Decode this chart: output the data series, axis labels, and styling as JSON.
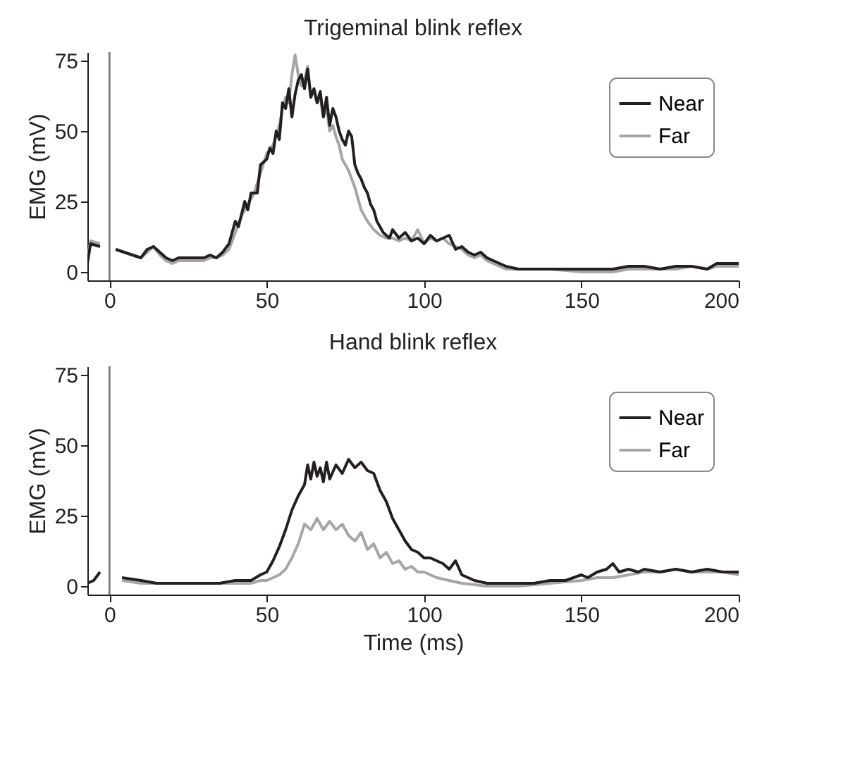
{
  "chart_data": [
    {
      "type": "line",
      "title": "Trigeminal blink reflex",
      "ylabel": "EMG (mV)",
      "xlim": [
        -7,
        200
      ],
      "ylim": [
        -3,
        78
      ],
      "xticks": [
        0,
        50,
        100,
        150,
        200
      ],
      "yticks": [
        0,
        25,
        50,
        75
      ],
      "grid": false,
      "legend": "top right",
      "ref_lines": [
        {
          "axis": "x",
          "value": 0,
          "color": "#808080"
        }
      ],
      "series": [
        {
          "name": "Far",
          "color": "#a6a6a6",
          "x": [
            -7,
            -6,
            -3,
            -1,
            2,
            10,
            12,
            14,
            16,
            18,
            20,
            22,
            25,
            28,
            30,
            32,
            34,
            36,
            38,
            40,
            42,
            44,
            46,
            48,
            50,
            52,
            54,
            55,
            56,
            57,
            58,
            59,
            60,
            61,
            62,
            63,
            64,
            65,
            66,
            67,
            68,
            69,
            70,
            71,
            72,
            73,
            74,
            76,
            78,
            80,
            82,
            84,
            86,
            88,
            90,
            92,
            94,
            96,
            98,
            100,
            102,
            104,
            106,
            108,
            110,
            112,
            114,
            116,
            118,
            120,
            122,
            124,
            126,
            130,
            140,
            150,
            160,
            165,
            170,
            175,
            180,
            185,
            190,
            193,
            196,
            200
          ],
          "values": [
            4,
            11,
            10,
            null,
            8,
            5,
            7,
            9,
            6,
            4,
            3,
            4,
            4,
            4,
            4,
            5,
            5,
            6,
            8,
            14,
            20,
            24,
            28,
            35,
            42,
            45,
            52,
            58,
            62,
            60,
            70,
            77,
            70,
            66,
            68,
            73,
            62,
            65,
            60,
            62,
            55,
            58,
            50,
            52,
            48,
            45,
            40,
            36,
            30,
            22,
            18,
            15,
            13,
            12,
            12,
            11,
            12,
            11,
            15,
            10,
            12,
            11,
            12,
            10,
            9,
            8,
            6,
            5,
            6,
            4,
            3,
            2,
            1,
            1,
            1,
            0,
            0,
            1,
            1,
            1,
            1,
            2,
            1,
            2,
            2,
            2
          ]
        },
        {
          "name": "Near",
          "color": "#231f20",
          "x": [
            -7,
            -6,
            -3,
            -1,
            2,
            10,
            12,
            14,
            16,
            18,
            20,
            22,
            25,
            28,
            30,
            32,
            34,
            36,
            38,
            40,
            41,
            43,
            44,
            45,
            47,
            48,
            50,
            51,
            52,
            53,
            54,
            55,
            56,
            57,
            58,
            59,
            60,
            61,
            62,
            63,
            64,
            65,
            66,
            67,
            68,
            69,
            70,
            71,
            72,
            73,
            74,
            75,
            76,
            77,
            78,
            79,
            80,
            81,
            82,
            83,
            84,
            85,
            87,
            89,
            90,
            92,
            94,
            96,
            98,
            100,
            102,
            104,
            106,
            108,
            110,
            112,
            114,
            116,
            118,
            120,
            122,
            124,
            126,
            130,
            140,
            150,
            160,
            165,
            170,
            175,
            180,
            185,
            190,
            193,
            196,
            200
          ],
          "values": [
            3,
            10,
            9,
            null,
            8,
            5,
            8,
            9,
            7,
            5,
            4,
            5,
            5,
            5,
            5,
            6,
            5,
            7,
            10,
            18,
            16,
            25,
            22,
            28,
            28,
            38,
            40,
            44,
            42,
            50,
            47,
            60,
            58,
            65,
            55,
            63,
            68,
            70,
            65,
            72,
            62,
            65,
            60,
            64,
            55,
            62,
            52,
            58,
            55,
            50,
            47,
            45,
            50,
            48,
            38,
            35,
            33,
            30,
            28,
            24,
            22,
            18,
            14,
            12,
            15,
            12,
            14,
            11,
            12,
            10,
            13,
            11,
            12,
            13,
            8,
            9,
            7,
            6,
            7,
            5,
            4,
            3,
            2,
            1,
            1,
            1,
            1,
            2,
            2,
            1,
            2,
            2,
            1,
            3,
            3,
            3
          ]
        }
      ]
    },
    {
      "type": "line",
      "title": "Hand blink reflex",
      "xlabel": "Time (ms)",
      "ylabel": "EMG (mV)",
      "xlim": [
        -7,
        200
      ],
      "ylim": [
        -3,
        78
      ],
      "xticks": [
        0,
        50,
        100,
        150,
        200
      ],
      "yticks": [
        0,
        25,
        50,
        75
      ],
      "grid": false,
      "legend": "top right",
      "ref_lines": [
        {
          "axis": "x",
          "value": 0,
          "color": "#808080"
        }
      ],
      "series": [
        {
          "name": "Far",
          "color": "#a6a6a6",
          "x": [
            4,
            10,
            15,
            20,
            25,
            30,
            35,
            40,
            45,
            48,
            50,
            52,
            54,
            56,
            58,
            60,
            62,
            64,
            66,
            68,
            70,
            72,
            74,
            76,
            78,
            80,
            82,
            84,
            86,
            88,
            90,
            92,
            94,
            96,
            98,
            100,
            102,
            104,
            108,
            112,
            120,
            130,
            140,
            150,
            155,
            160,
            165,
            170,
            175,
            180,
            185,
            190,
            195,
            200
          ],
          "values": [
            2,
            1,
            1,
            1,
            1,
            1,
            1,
            1,
            1,
            2,
            2,
            3,
            4,
            6,
            10,
            15,
            22,
            20,
            24,
            20,
            23,
            20,
            22,
            18,
            16,
            19,
            13,
            15,
            10,
            12,
            8,
            9,
            6,
            7,
            5,
            5,
            4,
            3,
            2,
            1,
            0,
            0,
            1,
            2,
            3,
            3,
            4,
            5,
            5,
            6,
            5,
            5,
            5,
            4
          ]
        },
        {
          "name": "Near",
          "color": "#231f20",
          "x": [
            -7,
            -5,
            -3,
            -1,
            4,
            10,
            15,
            20,
            25,
            30,
            35,
            40,
            45,
            48,
            50,
            52,
            54,
            56,
            58,
            60,
            62,
            63,
            64,
            65,
            66,
            67,
            68,
            69,
            70,
            72,
            74,
            76,
            78,
            80,
            82,
            84,
            86,
            88,
            90,
            92,
            94,
            96,
            98,
            100,
            102,
            104,
            106,
            108,
            110,
            112,
            114,
            116,
            120,
            125,
            130,
            135,
            140,
            145,
            150,
            152,
            155,
            158,
            160,
            162,
            165,
            168,
            170,
            175,
            180,
            185,
            190,
            195,
            200
          ],
          "values": [
            1,
            2,
            5,
            null,
            3,
            2,
            1,
            1,
            1,
            1,
            1,
            2,
            2,
            4,
            5,
            9,
            14,
            20,
            27,
            32,
            36,
            43,
            38,
            44,
            39,
            42,
            37,
            44,
            38,
            43,
            40,
            45,
            42,
            44,
            41,
            40,
            34,
            30,
            24,
            20,
            16,
            13,
            12,
            10,
            10,
            9,
            8,
            6,
            9,
            4,
            3,
            2,
            1,
            1,
            1,
            1,
            2,
            2,
            4,
            3,
            5,
            6,
            8,
            5,
            6,
            5,
            6,
            5,
            6,
            5,
            6,
            5,
            5
          ]
        }
      ]
    }
  ]
}
